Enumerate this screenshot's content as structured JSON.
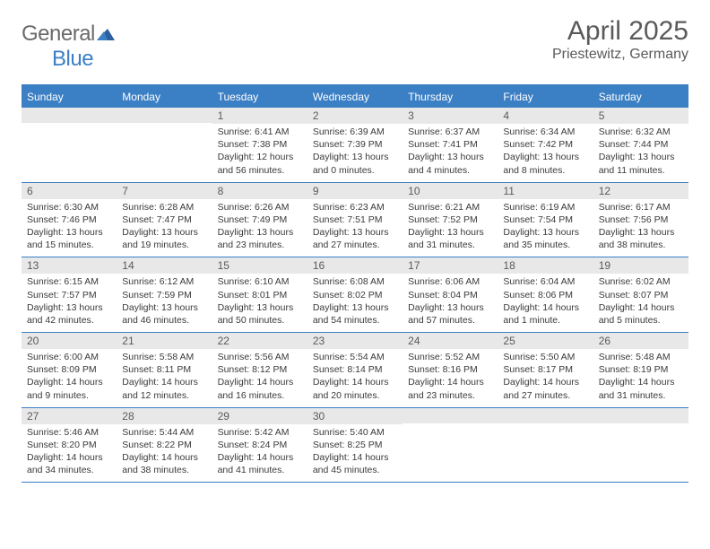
{
  "brand": {
    "text1": "General",
    "text2": "Blue"
  },
  "title": "April 2025",
  "location": "Priestewitz, Germany",
  "colors": {
    "accent": "#3b7fc4",
    "header_text": "#ffffff",
    "daynum_bg": "#e8e8e8",
    "text": "#3a3a3a",
    "muted": "#5a5a5a"
  },
  "daynames": [
    "Sunday",
    "Monday",
    "Tuesday",
    "Wednesday",
    "Thursday",
    "Friday",
    "Saturday"
  ],
  "weeks": [
    [
      {
        "n": "",
        "sr": "",
        "ss": "",
        "dl": ""
      },
      {
        "n": "",
        "sr": "",
        "ss": "",
        "dl": ""
      },
      {
        "n": "1",
        "sr": "Sunrise: 6:41 AM",
        "ss": "Sunset: 7:38 PM",
        "dl": "Daylight: 12 hours and 56 minutes."
      },
      {
        "n": "2",
        "sr": "Sunrise: 6:39 AM",
        "ss": "Sunset: 7:39 PM",
        "dl": "Daylight: 13 hours and 0 minutes."
      },
      {
        "n": "3",
        "sr": "Sunrise: 6:37 AM",
        "ss": "Sunset: 7:41 PM",
        "dl": "Daylight: 13 hours and 4 minutes."
      },
      {
        "n": "4",
        "sr": "Sunrise: 6:34 AM",
        "ss": "Sunset: 7:42 PM",
        "dl": "Daylight: 13 hours and 8 minutes."
      },
      {
        "n": "5",
        "sr": "Sunrise: 6:32 AM",
        "ss": "Sunset: 7:44 PM",
        "dl": "Daylight: 13 hours and 11 minutes."
      }
    ],
    [
      {
        "n": "6",
        "sr": "Sunrise: 6:30 AM",
        "ss": "Sunset: 7:46 PM",
        "dl": "Daylight: 13 hours and 15 minutes."
      },
      {
        "n": "7",
        "sr": "Sunrise: 6:28 AM",
        "ss": "Sunset: 7:47 PM",
        "dl": "Daylight: 13 hours and 19 minutes."
      },
      {
        "n": "8",
        "sr": "Sunrise: 6:26 AM",
        "ss": "Sunset: 7:49 PM",
        "dl": "Daylight: 13 hours and 23 minutes."
      },
      {
        "n": "9",
        "sr": "Sunrise: 6:23 AM",
        "ss": "Sunset: 7:51 PM",
        "dl": "Daylight: 13 hours and 27 minutes."
      },
      {
        "n": "10",
        "sr": "Sunrise: 6:21 AM",
        "ss": "Sunset: 7:52 PM",
        "dl": "Daylight: 13 hours and 31 minutes."
      },
      {
        "n": "11",
        "sr": "Sunrise: 6:19 AM",
        "ss": "Sunset: 7:54 PM",
        "dl": "Daylight: 13 hours and 35 minutes."
      },
      {
        "n": "12",
        "sr": "Sunrise: 6:17 AM",
        "ss": "Sunset: 7:56 PM",
        "dl": "Daylight: 13 hours and 38 minutes."
      }
    ],
    [
      {
        "n": "13",
        "sr": "Sunrise: 6:15 AM",
        "ss": "Sunset: 7:57 PM",
        "dl": "Daylight: 13 hours and 42 minutes."
      },
      {
        "n": "14",
        "sr": "Sunrise: 6:12 AM",
        "ss": "Sunset: 7:59 PM",
        "dl": "Daylight: 13 hours and 46 minutes."
      },
      {
        "n": "15",
        "sr": "Sunrise: 6:10 AM",
        "ss": "Sunset: 8:01 PM",
        "dl": "Daylight: 13 hours and 50 minutes."
      },
      {
        "n": "16",
        "sr": "Sunrise: 6:08 AM",
        "ss": "Sunset: 8:02 PM",
        "dl": "Daylight: 13 hours and 54 minutes."
      },
      {
        "n": "17",
        "sr": "Sunrise: 6:06 AM",
        "ss": "Sunset: 8:04 PM",
        "dl": "Daylight: 13 hours and 57 minutes."
      },
      {
        "n": "18",
        "sr": "Sunrise: 6:04 AM",
        "ss": "Sunset: 8:06 PM",
        "dl": "Daylight: 14 hours and 1 minute."
      },
      {
        "n": "19",
        "sr": "Sunrise: 6:02 AM",
        "ss": "Sunset: 8:07 PM",
        "dl": "Daylight: 14 hours and 5 minutes."
      }
    ],
    [
      {
        "n": "20",
        "sr": "Sunrise: 6:00 AM",
        "ss": "Sunset: 8:09 PM",
        "dl": "Daylight: 14 hours and 9 minutes."
      },
      {
        "n": "21",
        "sr": "Sunrise: 5:58 AM",
        "ss": "Sunset: 8:11 PM",
        "dl": "Daylight: 14 hours and 12 minutes."
      },
      {
        "n": "22",
        "sr": "Sunrise: 5:56 AM",
        "ss": "Sunset: 8:12 PM",
        "dl": "Daylight: 14 hours and 16 minutes."
      },
      {
        "n": "23",
        "sr": "Sunrise: 5:54 AM",
        "ss": "Sunset: 8:14 PM",
        "dl": "Daylight: 14 hours and 20 minutes."
      },
      {
        "n": "24",
        "sr": "Sunrise: 5:52 AM",
        "ss": "Sunset: 8:16 PM",
        "dl": "Daylight: 14 hours and 23 minutes."
      },
      {
        "n": "25",
        "sr": "Sunrise: 5:50 AM",
        "ss": "Sunset: 8:17 PM",
        "dl": "Daylight: 14 hours and 27 minutes."
      },
      {
        "n": "26",
        "sr": "Sunrise: 5:48 AM",
        "ss": "Sunset: 8:19 PM",
        "dl": "Daylight: 14 hours and 31 minutes."
      }
    ],
    [
      {
        "n": "27",
        "sr": "Sunrise: 5:46 AM",
        "ss": "Sunset: 8:20 PM",
        "dl": "Daylight: 14 hours and 34 minutes."
      },
      {
        "n": "28",
        "sr": "Sunrise: 5:44 AM",
        "ss": "Sunset: 8:22 PM",
        "dl": "Daylight: 14 hours and 38 minutes."
      },
      {
        "n": "29",
        "sr": "Sunrise: 5:42 AM",
        "ss": "Sunset: 8:24 PM",
        "dl": "Daylight: 14 hours and 41 minutes."
      },
      {
        "n": "30",
        "sr": "Sunrise: 5:40 AM",
        "ss": "Sunset: 8:25 PM",
        "dl": "Daylight: 14 hours and 45 minutes."
      },
      {
        "n": "",
        "sr": "",
        "ss": "",
        "dl": ""
      },
      {
        "n": "",
        "sr": "",
        "ss": "",
        "dl": ""
      },
      {
        "n": "",
        "sr": "",
        "ss": "",
        "dl": ""
      }
    ]
  ]
}
